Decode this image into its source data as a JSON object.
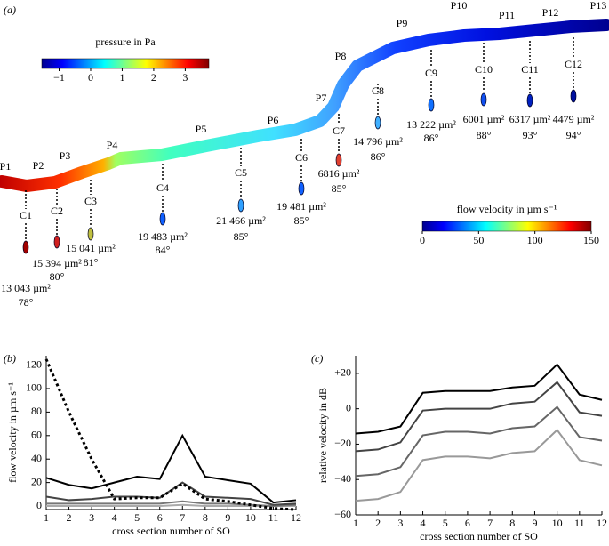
{
  "panel_a": {
    "panel_label": "(a)",
    "pressure_bar": {
      "title": "pressure in Pa",
      "lim": [
        -1.55,
        3.75
      ],
      "ticks": [
        {
          "value": -1,
          "label": "−1"
        },
        0,
        1,
        2,
        3
      ]
    },
    "velocity_bar": {
      "title": "flow velocity in µm s⁻¹",
      "lim": [
        0,
        150
      ],
      "ticks": [
        0,
        50,
        100,
        150
      ]
    },
    "points": [
      "P1",
      "P2",
      "P3",
      "P4",
      "P5",
      "P6",
      "P7",
      "P8",
      "P9",
      "P10",
      "P11",
      "P12",
      "P13"
    ],
    "cross_sections": [
      {
        "label": "C1",
        "area": "13 043 µm²",
        "angle": "78°"
      },
      {
        "label": "C2",
        "area": "15 394 µm²",
        "angle": "80°"
      },
      {
        "label": "C3",
        "area": "15 041 µm²",
        "angle": "81°"
      },
      {
        "label": "C4",
        "area": "19 483 µm²",
        "angle": "84°"
      },
      {
        "label": "C5",
        "area": "21 466 µm²",
        "angle": "85°"
      },
      {
        "label": "C6",
        "area": "19 481 µm²",
        "angle": "85°"
      },
      {
        "label": "C7",
        "area": "6816 µm²",
        "angle": "85°"
      },
      {
        "label": "C8",
        "area": "14 796 µm²",
        "angle": "86°"
      },
      {
        "label": "C9",
        "area": "13 222 µm²",
        "angle": "86°"
      },
      {
        "label": "C10",
        "area": "6001 µm²",
        "angle": "88°"
      },
      {
        "label": "C11",
        "area": "6317 µm²",
        "angle": "93°"
      },
      {
        "label": "C12",
        "area": "4479 µm²",
        "angle": "94°"
      }
    ]
  },
  "chart_data": [
    {
      "type": "line",
      "panel_label": "(b)",
      "x_label": "cross section number of SO",
      "y_label": "flow velocity in µm s⁻¹",
      "x": [
        1,
        2,
        3,
        4,
        5,
        6,
        7,
        8,
        9,
        10,
        11,
        12
      ],
      "xlim": [
        1,
        12
      ],
      "xticks": [
        1,
        2,
        3,
        4,
        5,
        6,
        7,
        8,
        9,
        10,
        11,
        12
      ],
      "ylim": [
        -3,
        128
      ],
      "yticks": [
        0,
        20,
        40,
        60,
        80,
        100,
        120
      ],
      "series": [
        {
          "color": "#000000",
          "dashed": true,
          "values": [
            125,
            80,
            40,
            6,
            7,
            7,
            19,
            6,
            4,
            1,
            -2,
            -3
          ]
        },
        {
          "color": "#000000",
          "values": [
            24,
            18,
            15,
            20,
            25,
            23,
            60,
            25,
            22,
            19,
            3,
            5
          ]
        },
        {
          "color": "#444444",
          "values": [
            8,
            5,
            6,
            8,
            8,
            7,
            20,
            8,
            7,
            6,
            1,
            2
          ]
        },
        {
          "color": "#777777",
          "values": [
            2,
            2,
            2,
            2,
            2,
            2,
            4,
            2,
            2,
            1,
            0,
            1
          ]
        },
        {
          "color": "#aaaaaa",
          "values": [
            0,
            0,
            0,
            0,
            0,
            0,
            1,
            0,
            0,
            0,
            0,
            0
          ]
        }
      ]
    },
    {
      "type": "line",
      "panel_label": "(c)",
      "x_label": "cross section number of SO",
      "y_label": "relative velocity in dB",
      "x": [
        1,
        2,
        3,
        4,
        5,
        6,
        7,
        8,
        9,
        10,
        11,
        12
      ],
      "xlim": [
        1,
        12
      ],
      "xticks": [
        1,
        2,
        3,
        4,
        5,
        6,
        7,
        8,
        9,
        10,
        11,
        12
      ],
      "ylim": [
        -60,
        30
      ],
      "yticks": [
        {
          "value": 20,
          "label": "+20"
        },
        0,
        {
          "value": -20,
          "label": "−20"
        },
        {
          "value": -40,
          "label": "−40"
        },
        {
          "value": -60,
          "label": "−60"
        }
      ],
      "series": [
        {
          "color": "#000000",
          "values": [
            -14,
            -13,
            -10,
            9,
            10,
            10,
            10,
            12,
            13,
            25,
            8,
            5
          ]
        },
        {
          "color": "#444444",
          "values": [
            -24,
            -23,
            -19,
            -1,
            0,
            0,
            0,
            3,
            4,
            15,
            -2,
            -4
          ]
        },
        {
          "color": "#666666",
          "values": [
            -38,
            -37,
            -33,
            -15,
            -13,
            -13,
            -14,
            -11,
            -10,
            1,
            -16,
            -18
          ]
        },
        {
          "color": "#999999",
          "values": [
            -52,
            -51,
            -47,
            -29,
            -27,
            -27,
            -28,
            -25,
            -24,
            -12,
            -29,
            -32
          ]
        }
      ]
    }
  ]
}
